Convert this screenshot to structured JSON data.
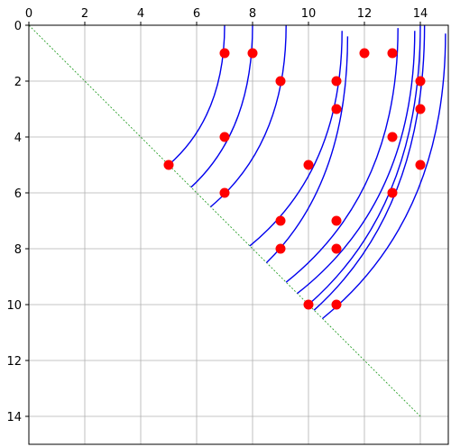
{
  "chart_data": {
    "type": "scatter",
    "title": "",
    "xlabel": "",
    "ylabel": "",
    "xlim": [
      0,
      15
    ],
    "ylim": [
      15,
      0
    ],
    "y_inverted": true,
    "x_axis_position": "top",
    "grid": true,
    "legend": "none",
    "x_ticks": [
      "0",
      "2",
      "4",
      "6",
      "8",
      "10",
      "12",
      "14"
    ],
    "y_ticks": [
      "0",
      "2",
      "4",
      "6",
      "8",
      "10",
      "12",
      "14"
    ],
    "diagonal": {
      "from": [
        0,
        0
      ],
      "to": [
        14,
        14
      ],
      "color": "#2ca02c",
      "style": "dashed"
    },
    "points": {
      "color": "#ff0000",
      "x": [
        7,
        8,
        12,
        13,
        9,
        11,
        14,
        11,
        14,
        7,
        13,
        5,
        10,
        14,
        7,
        13,
        9,
        11,
        9,
        11,
        10,
        11
      ],
      "y": [
        1,
        1,
        1,
        1,
        2,
        2,
        2,
        3,
        3,
        4,
        4,
        5,
        5,
        5,
        6,
        6,
        7,
        7,
        8,
        8,
        10,
        10
      ]
    },
    "curves": {
      "color": "#0000ee",
      "series": [
        {
          "start": [
            5.0,
            5.0
          ],
          "end": [
            7.0,
            0.0
          ]
        },
        {
          "start": [
            5.8,
            5.8
          ],
          "end": [
            8.0,
            0.0
          ]
        },
        {
          "start": [
            6.5,
            6.5
          ],
          "end": [
            9.2,
            0.0
          ]
        },
        {
          "start": [
            7.9,
            7.9
          ],
          "end": [
            11.2,
            0.2
          ]
        },
        {
          "start": [
            8.5,
            8.5
          ],
          "end": [
            11.4,
            0.4
          ]
        },
        {
          "start": [
            9.2,
            9.2
          ],
          "end": [
            13.2,
            0.1
          ]
        },
        {
          "start": [
            9.6,
            9.6
          ],
          "end": [
            13.8,
            0.2
          ]
        },
        {
          "start": [
            10.0,
            10.0
          ],
          "end": [
            14.0,
            0.0
          ]
        },
        {
          "start": [
            10.2,
            10.2
          ],
          "end": [
            14.15,
            0.0
          ]
        },
        {
          "start": [
            10.5,
            10.5
          ],
          "end": [
            14.9,
            0.3
          ]
        }
      ]
    }
  }
}
